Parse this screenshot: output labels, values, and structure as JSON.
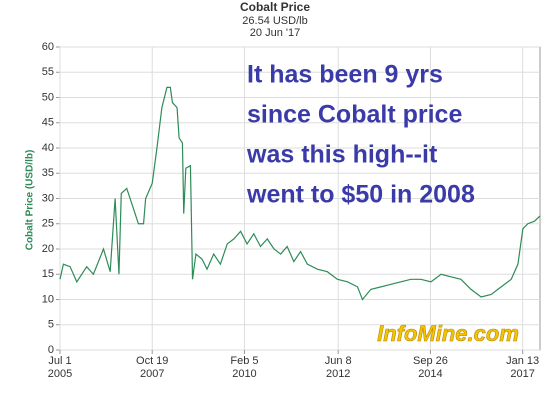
{
  "chart_data": {
    "type": "line",
    "title": "Cobalt Price",
    "subtitle": [
      "26.54 USD/lb",
      "20 Jun '17"
    ],
    "y_label": "Cobalt Price (USD/lb)",
    "annotation": [
      "It has been 9 yrs",
      "since Cobalt price",
      "was this high--it",
      "went to $50 in 2008"
    ],
    "watermark": "InfoMine.com",
    "color": "#2e8b57",
    "grid": true,
    "ylim": [
      0,
      60
    ],
    "yticks": [
      0,
      5,
      10,
      15,
      20,
      25,
      30,
      35,
      40,
      45,
      50,
      55,
      60
    ],
    "xlim": [
      "2005-07-01",
      "2017-06-20"
    ],
    "xticks": [
      {
        "value": "2005-07-01",
        "label": [
          "Jul 1",
          "2005"
        ]
      },
      {
        "value": "2007-10-19",
        "label": [
          "Oct 19",
          "2007"
        ]
      },
      {
        "value": "2010-02-05",
        "label": [
          "Feb 5",
          "2010"
        ]
      },
      {
        "value": "2012-06-08",
        "label": [
          "Jun 8",
          "2012"
        ]
      },
      {
        "value": "2014-09-26",
        "label": [
          "Sep 26",
          "2014"
        ]
      },
      {
        "value": "2017-01-13",
        "label": [
          "Jan 13",
          "2017"
        ]
      }
    ],
    "x": [
      "2005-07-01",
      "2005-08-01",
      "2005-10-01",
      "2005-12-01",
      "2006-03-01",
      "2006-05-01",
      "2006-08-01",
      "2006-10-01",
      "2006-11-15",
      "2006-12-20",
      "2007-01-10",
      "2007-03-01",
      "2007-05-01",
      "2007-06-15",
      "2007-08-01",
      "2007-08-20",
      "2007-10-19",
      "2007-12-01",
      "2008-01-15",
      "2008-03-01",
      "2008-04-01",
      "2008-04-20",
      "2008-06-01",
      "2008-06-20",
      "2008-07-20",
      "2008-08-01",
      "2008-08-20",
      "2008-10-01",
      "2008-10-20",
      "2008-11-20",
      "2009-01-15",
      "2009-03-01",
      "2009-05-01",
      "2009-07-01",
      "2009-09-01",
      "2009-11-01",
      "2010-01-01",
      "2010-03-01",
      "2010-05-01",
      "2010-07-01",
      "2010-09-01",
      "2010-11-01",
      "2011-01-01",
      "2011-03-01",
      "2011-05-01",
      "2011-07-01",
      "2011-09-01",
      "2011-12-01",
      "2012-03-01",
      "2012-06-01",
      "2012-09-01",
      "2012-12-01",
      "2013-01-15",
      "2013-04-01",
      "2013-07-01",
      "2013-10-01",
      "2014-01-01",
      "2014-04-01",
      "2014-07-01",
      "2014-10-01",
      "2015-01-01",
      "2015-04-01",
      "2015-07-01",
      "2015-10-01",
      "2016-01-01",
      "2016-04-01",
      "2016-07-01",
      "2016-10-01",
      "2016-12-01",
      "2017-01-15",
      "2017-03-01",
      "2017-05-01",
      "2017-06-20"
    ],
    "values": [
      14,
      17,
      16.5,
      13.5,
      16.5,
      15,
      20,
      15.5,
      30,
      15,
      31,
      32,
      28,
      25,
      25,
      30,
      33,
      40,
      48,
      52,
      52,
      49,
      48,
      42,
      41,
      27,
      36,
      36.5,
      14,
      19,
      18,
      16,
      19,
      17,
      21,
      22,
      23.5,
      21,
      23,
      20.5,
      22,
      20,
      19,
      20.5,
      17.5,
      19.5,
      17,
      16,
      15.5,
      14,
      13.5,
      12.5,
      10,
      12,
      12.5,
      13,
      13.5,
      14,
      14,
      13.5,
      15,
      14.5,
      14,
      12,
      10.5,
      11,
      12.5,
      14,
      17,
      24,
      25,
      25.5,
      26.54
    ]
  }
}
